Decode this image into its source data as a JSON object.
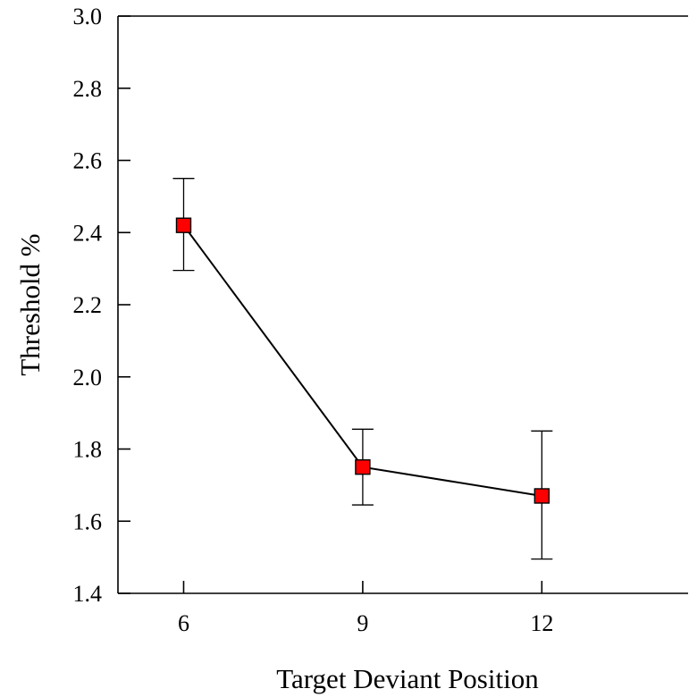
{
  "chart_data": {
    "type": "line",
    "title": "",
    "xlabel": "Target Deviant Position",
    "ylabel": "Threshold %",
    "x": [
      6,
      9,
      12
    ],
    "x_tick_labels": [
      "6",
      "9",
      "12"
    ],
    "y_ticks": [
      1.4,
      1.6,
      1.8,
      2.0,
      2.2,
      2.4,
      2.6,
      2.8,
      3.0
    ],
    "y_tick_labels": [
      "1.4",
      "1.6",
      "1.8",
      "2.0",
      "2.2",
      "2.4",
      "2.6",
      "2.8",
      "3.0"
    ],
    "ylim": [
      1.4,
      3.0
    ],
    "series": [
      {
        "values": [
          2.42,
          1.75,
          1.67
        ],
        "error_upper": [
          2.55,
          1.855,
          1.85
        ],
        "error_lower": [
          2.295,
          1.645,
          1.495
        ]
      }
    ],
    "marker": "square",
    "marker_color": "#ff0000",
    "line_color": "#000000",
    "grid": false,
    "legend": "none"
  }
}
